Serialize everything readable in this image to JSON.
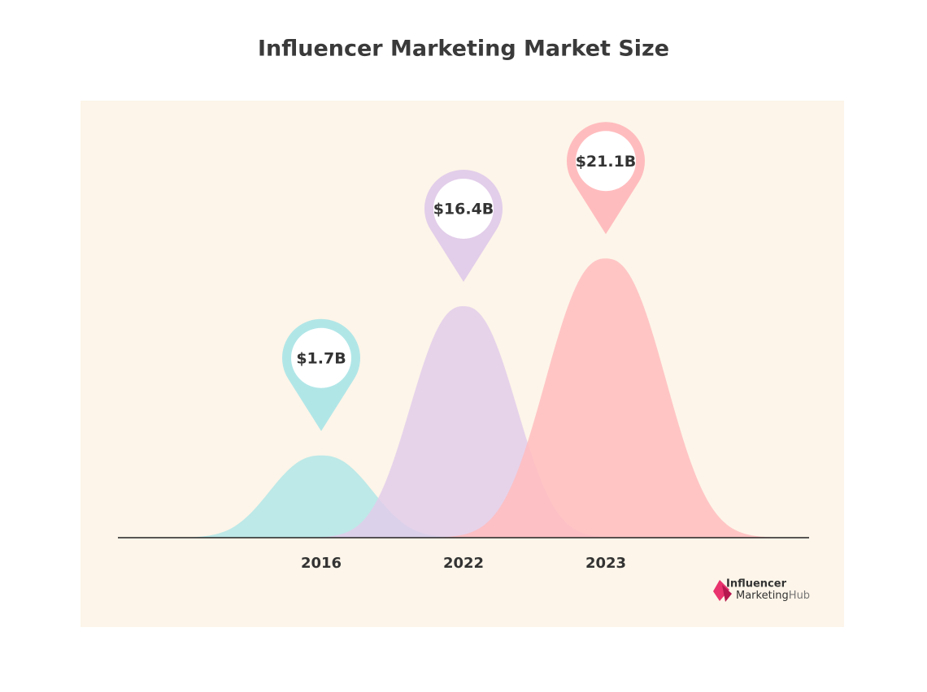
{
  "chart_data": {
    "type": "bell",
    "title": "Influencer Marketing Market Size",
    "categories": [
      "2016",
      "2022",
      "2023"
    ],
    "values": [
      1.7,
      16.4,
      21.1
    ],
    "value_labels": [
      "$1.7B",
      "$16.4B",
      "$21.1B"
    ],
    "colors": [
      "#b1e6e7",
      "#e2cdea",
      "#ffbcbe"
    ],
    "logo_text": [
      "Influencer",
      "Marketing",
      "Hub"
    ]
  }
}
